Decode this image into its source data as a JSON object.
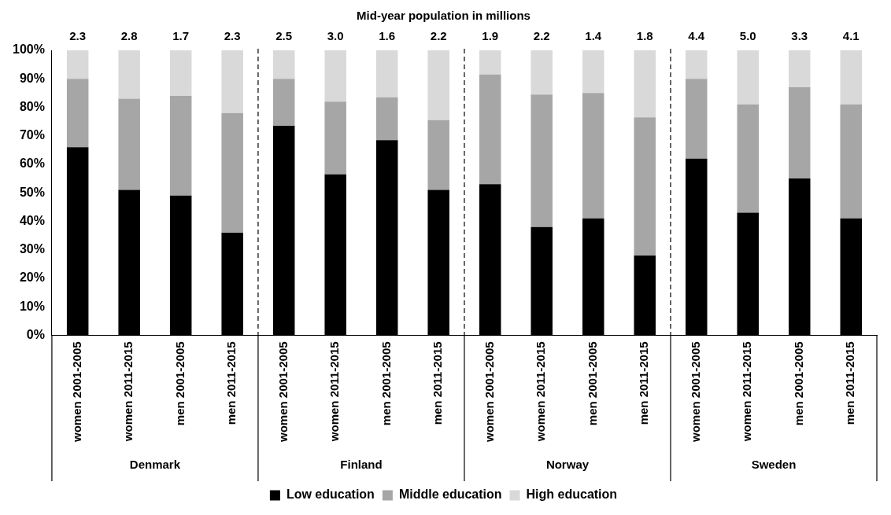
{
  "chart_data": {
    "type": "bar",
    "stacked": true,
    "title": "Mid-year population in millions",
    "categories": [
      "women 2001-2005",
      "women 2011-2015",
      "men 2001-2005",
      "men 2011-2015",
      "women 2001-2005",
      "women 2011-2015",
      "men 2001-2005",
      "men 2011-2015",
      "women 2001-2005",
      "women 2011-2015",
      "men 2001-2005",
      "men 2011-2015",
      "women 2001-2005",
      "women 2011-2015",
      "men 2001-2005",
      "men 2011-2015"
    ],
    "series": [
      {
        "name": "Low education",
        "color": "#000000",
        "values": [
          66,
          51,
          49,
          36,
          73.5,
          56.5,
          68.5,
          51,
          53,
          38,
          41,
          28,
          62,
          43,
          55,
          41
        ]
      },
      {
        "name": "Middle education",
        "color": "#a6a6a6",
        "values": [
          24,
          32,
          35,
          42,
          16.5,
          25.5,
          15,
          24.5,
          38.5,
          46.5,
          44,
          48.5,
          28,
          38,
          32,
          40
        ]
      },
      {
        "name": "High education",
        "color": "#d9d9d9",
        "values": [
          10,
          17,
          16,
          22,
          10,
          18,
          16.5,
          24.5,
          8.5,
          15.5,
          15,
          23.5,
          10,
          19,
          13,
          19
        ]
      }
    ],
    "ylim": [
      0,
      100
    ],
    "yticks": [
      {
        "value": 0,
        "label": "0%"
      },
      {
        "value": 10,
        "label": "10%"
      },
      {
        "value": 20,
        "label": "20%"
      },
      {
        "value": 30,
        "label": "30%"
      },
      {
        "value": 40,
        "label": "40%"
      },
      {
        "value": 50,
        "label": "50%"
      },
      {
        "value": 60,
        "label": "60%"
      },
      {
        "value": 70,
        "label": "70%"
      },
      {
        "value": 80,
        "label": "80%"
      },
      {
        "value": 90,
        "label": "90%"
      },
      {
        "value": 100,
        "label": "100%"
      }
    ],
    "annotations": [
      "2.3",
      "2.8",
      "1.7",
      "2.3",
      "2.5",
      "3.0",
      "1.6",
      "2.2",
      "1.9",
      "2.2",
      "1.4",
      "1.8",
      "4.4",
      "5.0",
      "3.3",
      "4.1",
      "Denmark",
      "Finland",
      "Norway",
      "Sweden"
    ],
    "grid": false,
    "legend": "bottom"
  }
}
